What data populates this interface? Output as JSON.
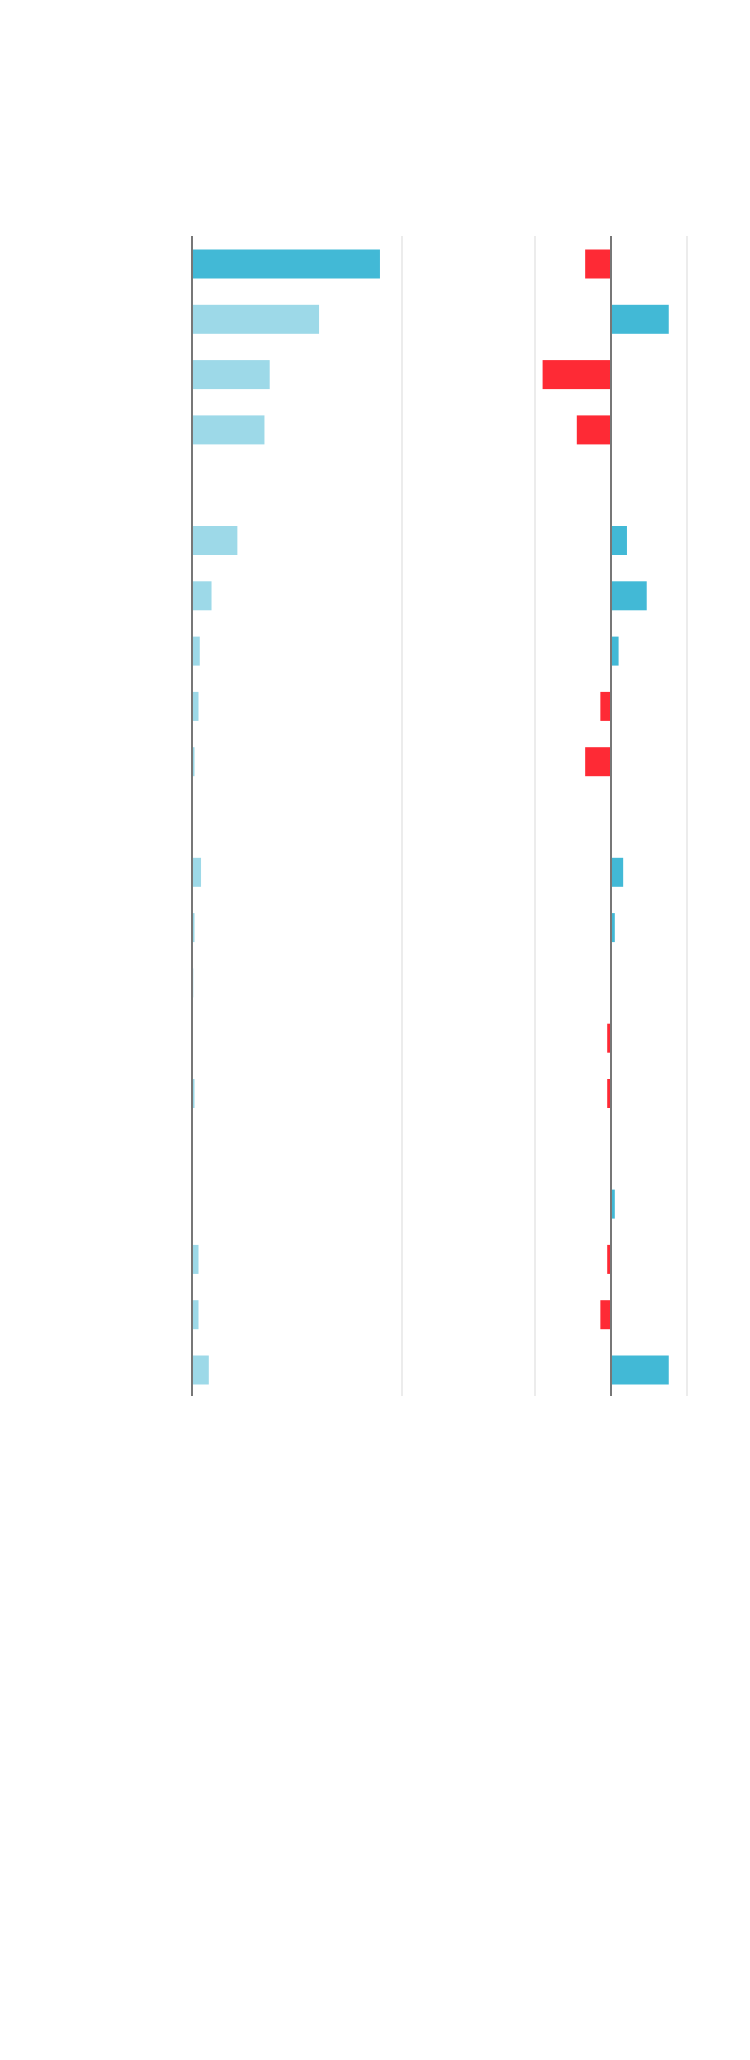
{
  "chart_data": [
    {
      "type": "bar",
      "orientation": "horizontal",
      "title": "",
      "xlabel": "",
      "ylabel": "",
      "xlim": [
        0,
        1
      ],
      "grid": true,
      "rows": 21,
      "gap_rows": [
        4,
        10,
        16
      ],
      "values": [
        0.895,
        0.605,
        0.37,
        0.345,
        0.216,
        0.093,
        0.037,
        0.031,
        0.012,
        0.043,
        0.012,
        0.006,
        0.003,
        0.012,
        0.0,
        0.031,
        0.031,
        0.08
      ],
      "highlight_index": 0,
      "colors": {
        "highlight": "#42b9d6",
        "default": "#9dd9e8"
      }
    },
    {
      "type": "bar",
      "orientation": "horizontal",
      "title": "",
      "xlabel": "",
      "ylabel": "",
      "xlim": [
        -1,
        1
      ],
      "grid": true,
      "rows": 21,
      "gap_rows": [
        4,
        10,
        16
      ],
      "values": [
        -0.34,
        0.76,
        -0.9,
        -0.45,
        0.21,
        0.47,
        0.1,
        -0.14,
        -0.34,
        0.16,
        0.05,
        0.0,
        -0.05,
        -0.05,
        0.05,
        -0.05,
        -0.14,
        0.76
      ],
      "colors": {
        "positive": "#42b9d6",
        "negative": "#fe2a35"
      }
    }
  ]
}
